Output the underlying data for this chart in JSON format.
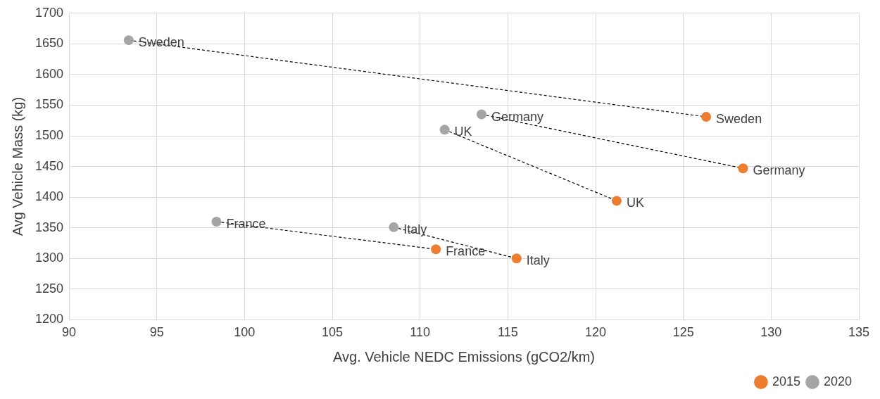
{
  "chart_data": {
    "type": "scatter",
    "xlabel": "Avg. Vehicle NEDC Emissions (gCO2/km)",
    "ylabel": "Avg Vehicle Mass (kg)",
    "xlim": [
      90,
      135
    ],
    "xticks": [
      90,
      95,
      100,
      105,
      110,
      115,
      120,
      125,
      130,
      135
    ],
    "ylim": [
      1200,
      1700
    ],
    "yticks": [
      1200,
      1250,
      1300,
      1350,
      1400,
      1450,
      1500,
      1550,
      1600,
      1650,
      1700
    ],
    "grid": true,
    "legend": "bottom right",
    "series": [
      {
        "name": "2015",
        "color": "#ed7d31",
        "marker": "circle",
        "x": [
          126.3,
          128.4,
          121.2,
          110.9,
          115.5
        ],
        "values": [
          1531,
          1447,
          1394,
          1315,
          1300
        ]
      },
      {
        "name": "2020",
        "color": "#a5a5a5",
        "marker": "circle",
        "x": [
          93.4,
          113.5,
          111.4,
          98.4,
          108.5
        ],
        "values": [
          1656,
          1535,
          1510,
          1360,
          1351
        ]
      },
      {
        "type": "line",
        "color": "#000000",
        "line_style": "dashed",
        "x": [
          93.4,
          126.3
        ],
        "values": [
          1656,
          1531
        ]
      },
      {
        "type": "line",
        "color": "#000000",
        "line_style": "dashed",
        "x": [
          113.5,
          128.4
        ],
        "values": [
          1535,
          1447
        ]
      },
      {
        "type": "line",
        "color": "#000000",
        "line_style": "dashed",
        "x": [
          111.4,
          121.2
        ],
        "values": [
          1510,
          1394
        ]
      },
      {
        "type": "line",
        "color": "#000000",
        "line_style": "dashed",
        "x": [
          98.4,
          110.9
        ],
        "values": [
          1360,
          1315
        ]
      },
      {
        "type": "line",
        "color": "#000000",
        "line_style": "dashed",
        "x": [
          108.5,
          115.5
        ],
        "values": [
          1351,
          1300
        ]
      }
    ],
    "annotations": [
      {
        "text": "Sweden",
        "x": 126.3,
        "y": 1531
      },
      {
        "text": "Germany",
        "x": 128.4,
        "y": 1447
      },
      {
        "text": "UK",
        "x": 121.2,
        "y": 1394
      },
      {
        "text": "France",
        "x": 110.9,
        "y": 1315
      },
      {
        "text": "Italy",
        "x": 115.5,
        "y": 1300
      },
      {
        "text": "Sweden",
        "x": 93.4,
        "y": 1656
      },
      {
        "text": "Germany",
        "x": 113.5,
        "y": 1535
      },
      {
        "text": "UK",
        "x": 111.4,
        "y": 1510
      },
      {
        "text": "France",
        "x": 98.4,
        "y": 1360
      },
      {
        "text": "Italy",
        "x": 108.5,
        "y": 1351
      }
    ]
  }
}
